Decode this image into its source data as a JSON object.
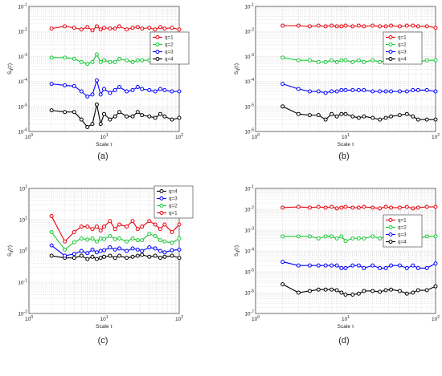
{
  "chart_data": [
    {
      "type": "line",
      "panel_label": "(a)",
      "xlabel": "Scale τ",
      "ylabel": "S_q(τ)",
      "xscale": "log",
      "yscale": "log",
      "xlim": [
        1,
        100
      ],
      "ylim": [
        1e-06,
        0.1
      ],
      "x_ticks": [
        "10^0",
        "10^1",
        "10^2"
      ],
      "y_ticks": [
        "10^-6",
        "10^-5",
        "10^-4",
        "10^-3",
        "10^-2",
        "10^-1"
      ],
      "grid": true,
      "legend_position": "top-right",
      "x": [
        2,
        3,
        4,
        5,
        6,
        7,
        8,
        9,
        10,
        12,
        14,
        16,
        20,
        24,
        28,
        32,
        40,
        48,
        56,
        64,
        80,
        100
      ],
      "series": [
        {
          "name": "q=1",
          "color": "#e8000b",
          "values": [
            0.013,
            0.016,
            0.014,
            0.012,
            0.015,
            0.011,
            0.016,
            0.012,
            0.014,
            0.013,
            0.013,
            0.016,
            0.012,
            0.014,
            0.015,
            0.013,
            0.014,
            0.012,
            0.015,
            0.013,
            0.014,
            0.012
          ]
        },
        {
          "name": "q=2",
          "color": "#1ac938",
          "values": [
            0.0009,
            0.0009,
            0.0008,
            0.0006,
            0.0005,
            0.0006,
            0.0012,
            0.0006,
            0.0007,
            0.0006,
            0.0006,
            0.0008,
            0.0007,
            0.0006,
            0.0007,
            0.0007,
            0.0007,
            0.0006,
            0.0007,
            0.0007,
            0.0006,
            0.0006
          ]
        },
        {
          "name": "q=3",
          "color": "#0000ff",
          "values": [
            8e-05,
            7e-05,
            6.5e-05,
            4e-05,
            2.5e-05,
            3e-05,
            0.00011,
            3e-05,
            5e-05,
            3.5e-05,
            4.5e-05,
            6e-05,
            4e-05,
            4.5e-05,
            6e-05,
            5e-05,
            4.5e-05,
            4e-05,
            5e-05,
            4.5e-05,
            4e-05,
            4e-05
          ]
        },
        {
          "name": "q=4",
          "color": "#000000",
          "values": [
            7e-06,
            6e-06,
            6e-06,
            3e-06,
            1.5e-06,
            2e-06,
            1.2e-05,
            2e-06,
            5e-06,
            3e-06,
            4e-06,
            6e-06,
            4e-06,
            4e-06,
            6e-06,
            4.5e-06,
            4e-06,
            3.5e-06,
            5e-06,
            4e-06,
            3e-06,
            3.5e-06
          ]
        }
      ]
    },
    {
      "type": "line",
      "panel_label": "(b)",
      "xlabel": "Scale τ",
      "ylabel": "S_q(τ)",
      "xscale": "log",
      "yscale": "log",
      "xlim": [
        1,
        100
      ],
      "ylim": [
        1e-06,
        0.1
      ],
      "x_ticks": [
        "10^0",
        "10^1",
        "10^2"
      ],
      "y_ticks": [
        "10^-6",
        "10^-5",
        "10^-4",
        "10^-3",
        "10^-2",
        "10^-1"
      ],
      "grid": true,
      "legend_position": "top-right",
      "x": [
        2,
        3,
        4,
        5,
        6,
        7,
        8,
        9,
        10,
        12,
        14,
        16,
        20,
        24,
        28,
        32,
        40,
        48,
        56,
        64,
        80,
        100
      ],
      "series": [
        {
          "name": "q=1",
          "color": "#e8000b",
          "values": [
            0.017,
            0.017,
            0.016,
            0.017,
            0.016,
            0.017,
            0.016,
            0.016,
            0.017,
            0.016,
            0.017,
            0.016,
            0.017,
            0.016,
            0.016,
            0.017,
            0.016,
            0.017,
            0.017,
            0.016,
            0.016,
            0.014
          ]
        },
        {
          "name": "q=2",
          "color": "#1ac938",
          "values": [
            0.0009,
            0.0007,
            0.0007,
            0.0006,
            0.0006,
            0.0007,
            0.0006,
            0.0007,
            0.0007,
            0.0006,
            0.0007,
            0.0006,
            0.0007,
            0.0006,
            0.0007,
            0.0007,
            0.0007,
            0.0007,
            0.0007,
            0.0006,
            0.0007,
            0.0007
          ]
        },
        {
          "name": "q=3",
          "color": "#0000ff",
          "values": [
            8e-05,
            5e-05,
            4e-05,
            4e-05,
            3.5e-05,
            4e-05,
            4e-05,
            4.5e-05,
            4.5e-05,
            4.5e-05,
            4.5e-05,
            4.5e-05,
            4e-05,
            4e-05,
            4e-05,
            4e-05,
            4e-05,
            4e-05,
            4.5e-05,
            4.5e-05,
            4.5e-05,
            4e-05
          ]
        },
        {
          "name": "q=4",
          "color": "#000000",
          "values": [
            1e-05,
            5e-06,
            4.5e-06,
            4.5e-06,
            3e-06,
            5e-06,
            4e-06,
            5e-06,
            5e-06,
            4e-06,
            3.5e-06,
            4e-06,
            3.5e-06,
            3e-06,
            3.5e-06,
            4e-06,
            4.5e-06,
            5e-06,
            4e-06,
            3e-06,
            3e-06,
            3e-06
          ]
        }
      ]
    },
    {
      "type": "line",
      "panel_label": "(c)",
      "xlabel": "Scale τ",
      "ylabel": "S_q(τ)",
      "xscale": "log",
      "yscale": "log",
      "xlim": [
        1,
        100
      ],
      "ylim": [
        0.01,
        100
      ],
      "x_ticks": [
        "10^0",
        "10^1",
        "10^2"
      ],
      "y_ticks": [
        "10^-2",
        "10^-1",
        "10^0",
        "10^1",
        "10^2"
      ],
      "grid": true,
      "legend_position": "top-right",
      "x": [
        2,
        3,
        4,
        5,
        6,
        7,
        8,
        9,
        10,
        12,
        14,
        16,
        20,
        24,
        28,
        32,
        40,
        48,
        56,
        64,
        80,
        100
      ],
      "series": [
        {
          "name": "q=4",
          "color": "#000000",
          "values": [
            0.7,
            0.6,
            0.6,
            0.7,
            0.55,
            0.65,
            0.55,
            0.6,
            0.65,
            0.7,
            0.6,
            0.7,
            0.6,
            0.65,
            0.7,
            0.75,
            0.65,
            0.7,
            0.6,
            0.65,
            0.7,
            0.6
          ]
        },
        {
          "name": "q=3",
          "color": "#0000ff",
          "values": [
            1.5,
            0.7,
            0.8,
            1.0,
            0.85,
            1.1,
            0.9,
            1.0,
            1.05,
            1.3,
            1.1,
            1.2,
            1.0,
            1.2,
            1.1,
            1.0,
            1.3,
            1.2,
            1.0,
            0.9,
            1.05,
            1.1
          ]
        },
        {
          "name": "q=2",
          "color": "#1ac938",
          "values": [
            4.0,
            1.1,
            1.9,
            2.5,
            2.3,
            2.5,
            2.0,
            2.5,
            2.4,
            3.0,
            2.4,
            2.5,
            2.0,
            2.5,
            2.2,
            2.2,
            3.5,
            3.0,
            2.2,
            2.0,
            1.8,
            2.5
          ]
        },
        {
          "name": "q=1",
          "color": "#e8000b",
          "values": [
            13.0,
            2.0,
            4.0,
            6.0,
            6.0,
            5.0,
            6.0,
            4.5,
            6.0,
            9.0,
            5.0,
            7.0,
            6.0,
            9.0,
            5.0,
            6.0,
            9.0,
            7.0,
            5.0,
            7.0,
            4.0,
            7.0
          ]
        }
      ]
    },
    {
      "type": "line",
      "panel_label": "(d)",
      "xlabel": "Scale τ",
      "ylabel": "S_q(τ)",
      "xscale": "log",
      "yscale": "log",
      "xlim": [
        1,
        100
      ],
      "ylim": [
        1e-07,
        0.1
      ],
      "x_ticks": [
        "10^0",
        "10^1",
        "10^2"
      ],
      "y_ticks": [
        "10^-7",
        "10^-6",
        "10^-5",
        "10^-4",
        "10^-3",
        "10^-2",
        "10^-1"
      ],
      "grid": true,
      "legend_position": "top-right",
      "x": [
        2,
        3,
        4,
        5,
        6,
        7,
        8,
        9,
        10,
        12,
        14,
        16,
        20,
        24,
        28,
        32,
        40,
        48,
        56,
        64,
        80,
        100
      ],
      "series": [
        {
          "name": "q=1",
          "color": "#e8000b",
          "values": [
            0.012,
            0.013,
            0.012,
            0.013,
            0.012,
            0.013,
            0.011,
            0.012,
            0.013,
            0.012,
            0.012,
            0.013,
            0.012,
            0.011,
            0.013,
            0.012,
            0.012,
            0.013,
            0.011,
            0.012,
            0.013,
            0.013
          ]
        },
        {
          "name": "q=2",
          "color": "#1ac938",
          "values": [
            0.0005,
            0.0005,
            0.0005,
            0.0004,
            0.0005,
            0.0005,
            0.0004,
            0.0005,
            0.0003,
            0.0004,
            0.0004,
            0.0004,
            0.0005,
            0.0004,
            0.0005,
            0.0004,
            0.0004,
            0.0005,
            0.0004,
            0.0004,
            0.0005,
            0.0005
          ]
        },
        {
          "name": "q=3",
          "color": "#0000ff",
          "values": [
            3e-05,
            2e-05,
            2e-05,
            2e-05,
            2e-05,
            2e-05,
            2e-05,
            1.5e-05,
            1.5e-05,
            2e-05,
            2e-05,
            1.5e-05,
            2e-05,
            1.5e-05,
            1.5e-05,
            2e-05,
            2e-05,
            1.5e-05,
            2e-05,
            1.5e-05,
            1.5e-05,
            2.5e-05
          ]
        },
        {
          "name": "q=4",
          "color": "#000000",
          "values": [
            2.5e-06,
            1e-06,
            1.2e-06,
            1.4e-06,
            1.4e-06,
            1.4e-06,
            1.3e-06,
            1e-06,
            8e-07,
            8e-07,
            9e-07,
            1.2e-06,
            1.2e-06,
            1.1e-06,
            1.3e-06,
            1.4e-06,
            1.2e-06,
            9e-07,
            1e-06,
            1.3e-06,
            1.3e-06,
            2e-06
          ]
        }
      ]
    }
  ]
}
